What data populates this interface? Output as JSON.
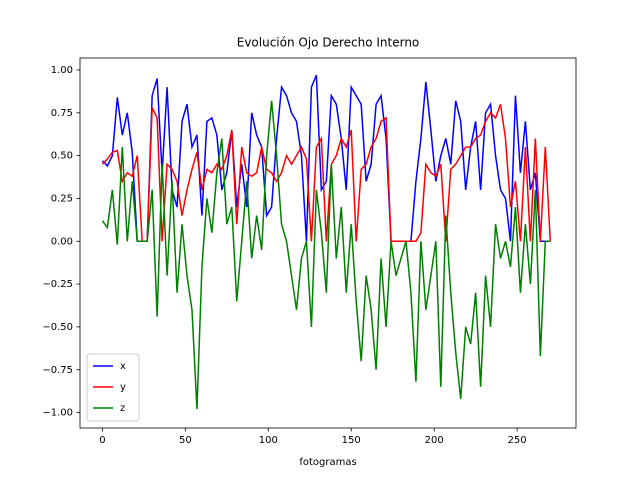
{
  "chart_data": {
    "type": "line",
    "title": "Evolución Ojo Derecho Interno",
    "x_label": "fotogramas",
    "x": [
      0,
      3,
      6,
      9,
      12,
      15,
      18,
      21,
      24,
      27,
      30,
      33,
      36,
      39,
      42,
      45,
      48,
      51,
      54,
      57,
      60,
      63,
      66,
      69,
      72,
      75,
      78,
      81,
      84,
      87,
      90,
      93,
      96,
      99,
      102,
      105,
      108,
      111,
      114,
      117,
      120,
      123,
      126,
      129,
      132,
      135,
      138,
      141,
      144,
      147,
      150,
      153,
      156,
      159,
      162,
      165,
      168,
      171,
      174,
      177,
      180,
      183,
      186,
      189,
      192,
      195,
      198,
      201,
      204,
      207,
      210,
      213,
      216,
      219,
      222,
      225,
      228,
      231,
      234,
      237,
      240,
      243,
      246,
      249,
      252,
      255,
      258,
      261,
      264,
      267,
      270
    ],
    "series": [
      {
        "name": "x",
        "color": "#0000ff",
        "values": [
          0.47,
          0.44,
          0.5,
          0.84,
          0.62,
          0.75,
          0.52,
          0.0,
          0.0,
          0.0,
          0.85,
          0.95,
          0.4,
          0.9,
          0.3,
          0.2,
          0.7,
          0.8,
          0.55,
          0.62,
          0.15,
          0.7,
          0.72,
          0.62,
          0.3,
          0.4,
          0.65,
          0.2,
          0.45,
          0.2,
          0.75,
          0.62,
          0.55,
          0.15,
          0.2,
          0.6,
          0.9,
          0.85,
          0.75,
          0.7,
          0.5,
          0.0,
          0.9,
          0.97,
          0.3,
          0.35,
          0.85,
          0.8,
          0.6,
          0.3,
          0.9,
          0.85,
          0.8,
          0.35,
          0.45,
          0.8,
          0.85,
          0.6,
          0.0,
          0.0,
          0.0,
          0.0,
          0.0,
          0.35,
          0.6,
          0.93,
          0.65,
          0.35,
          0.5,
          0.6,
          0.45,
          0.82,
          0.7,
          0.3,
          0.55,
          0.7,
          0.3,
          0.75,
          0.8,
          0.5,
          0.3,
          0.25,
          0.0,
          0.85,
          0.4,
          0.7,
          0.3,
          0.4,
          0.0,
          0.0,
          0.0
        ]
      },
      {
        "name": "y",
        "color": "#ff0000",
        "values": [
          0.45,
          0.48,
          0.52,
          0.53,
          0.35,
          0.4,
          0.38,
          0.5,
          0.0,
          0.0,
          0.78,
          0.72,
          0.0,
          0.45,
          0.42,
          0.35,
          0.15,
          0.3,
          0.42,
          0.52,
          0.3,
          0.42,
          0.4,
          0.45,
          0.42,
          0.5,
          0.65,
          0.1,
          0.55,
          0.4,
          0.38,
          0.4,
          0.55,
          0.42,
          0.4,
          0.35,
          0.4,
          0.5,
          0.45,
          0.5,
          0.55,
          0.48,
          0.0,
          0.55,
          0.6,
          0.0,
          0.45,
          0.5,
          0.6,
          0.55,
          0.65,
          0.0,
          0.42,
          0.45,
          0.55,
          0.6,
          0.7,
          0.72,
          0.0,
          0.0,
          0.0,
          0.0,
          0.0,
          0.0,
          0.05,
          0.45,
          0.4,
          0.38,
          0.45,
          0.0,
          0.42,
          0.45,
          0.5,
          0.55,
          0.55,
          0.6,
          0.62,
          0.7,
          0.75,
          0.72,
          0.8,
          0.6,
          0.2,
          0.35,
          0.0,
          0.55,
          0.0,
          0.6,
          0.0,
          0.55,
          0.0
        ]
      },
      {
        "name": "z",
        "color": "#008000",
        "values": [
          0.12,
          0.08,
          0.3,
          -0.02,
          0.55,
          0.0,
          0.35,
          0.0,
          0.0,
          0.0,
          0.3,
          -0.44,
          0.45,
          -0.2,
          0.35,
          -0.3,
          0.1,
          -0.2,
          -0.4,
          -0.98,
          -0.15,
          0.25,
          0.05,
          0.4,
          0.6,
          0.1,
          0.2,
          -0.35,
          0.0,
          0.35,
          -0.1,
          0.15,
          -0.05,
          0.5,
          0.82,
          0.5,
          0.1,
          0.0,
          -0.2,
          -0.4,
          -0.1,
          0.0,
          -0.5,
          0.3,
          0.05,
          -0.3,
          0.45,
          -0.1,
          0.2,
          -0.3,
          0.1,
          -0.35,
          -0.7,
          -0.2,
          -0.4,
          -0.75,
          -0.1,
          -0.5,
          0.0,
          -0.2,
          -0.1,
          0.0,
          -0.3,
          -0.82,
          0.0,
          -0.4,
          -0.2,
          0.0,
          -0.85,
          0.15,
          -0.3,
          -0.65,
          -0.92,
          -0.5,
          -0.6,
          -0.3,
          -0.85,
          -0.2,
          -0.5,
          0.1,
          -0.1,
          0.0,
          -0.15,
          0.2,
          -0.3,
          0.1,
          -0.25,
          0.3,
          -0.67,
          0.0,
          0.0
        ]
      }
    ],
    "xlim": [
      -13.5,
      285.5
    ],
    "ylim": [
      -1.09,
      1.07
    ],
    "xticks": [
      0,
      50,
      100,
      150,
      200,
      250
    ],
    "yticks": [
      {
        "value": -1,
        "label": "−1.00"
      },
      {
        "value": -0.75,
        "label": "−0.75"
      },
      {
        "value": -0.5,
        "label": "−0.50"
      },
      {
        "value": -0.25,
        "label": "−0.25"
      },
      {
        "value": 0,
        "label": "0.00"
      },
      {
        "value": 0.25,
        "label": "0.25"
      },
      {
        "value": 0.5,
        "label": "0.50"
      },
      {
        "value": 0.75,
        "label": "0.75"
      },
      {
        "value": 1,
        "label": "1.00"
      }
    ],
    "legend": "lower left",
    "grid": false
  }
}
